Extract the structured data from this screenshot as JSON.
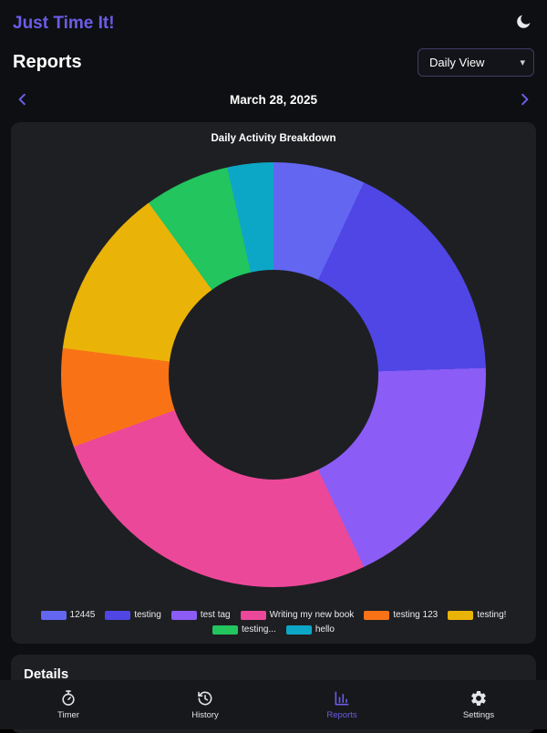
{
  "app": {
    "title": "Just Time It!",
    "accent_color": "#6c5ce7"
  },
  "header": {
    "page_title": "Reports",
    "view_selector": {
      "value": "Daily View",
      "options": [
        "Daily View"
      ]
    }
  },
  "date_nav": {
    "date": "March 28, 2025"
  },
  "chart_data": {
    "type": "pie",
    "variant": "donut",
    "title": "Daily Activity Breakdown",
    "legend_position": "bottom",
    "legend_row_split": 6,
    "categories": [
      "12445",
      "testing",
      "test tag",
      "Writing my new book",
      "testing 123",
      "testing!",
      "testing...",
      "hello"
    ],
    "values": [
      7,
      17.5,
      18.5,
      26.5,
      7.5,
      13,
      6.5,
      3.5
    ],
    "unit": "percent-of-day",
    "colors": [
      "#6366f1",
      "#4f46e5",
      "#8b5cf6",
      "#ec4899",
      "#f97316",
      "#eab308",
      "#22c55e",
      "#0ca7c7"
    ]
  },
  "details": {
    "title": "Details"
  },
  "tabbar": {
    "items": [
      {
        "label": "Timer",
        "icon": "stopwatch-icon",
        "active": false
      },
      {
        "label": "History",
        "icon": "history-icon",
        "active": false
      },
      {
        "label": "Reports",
        "icon": "bar-chart-icon",
        "active": true
      },
      {
        "label": "Settings",
        "icon": "gear-icon",
        "active": false
      }
    ]
  }
}
